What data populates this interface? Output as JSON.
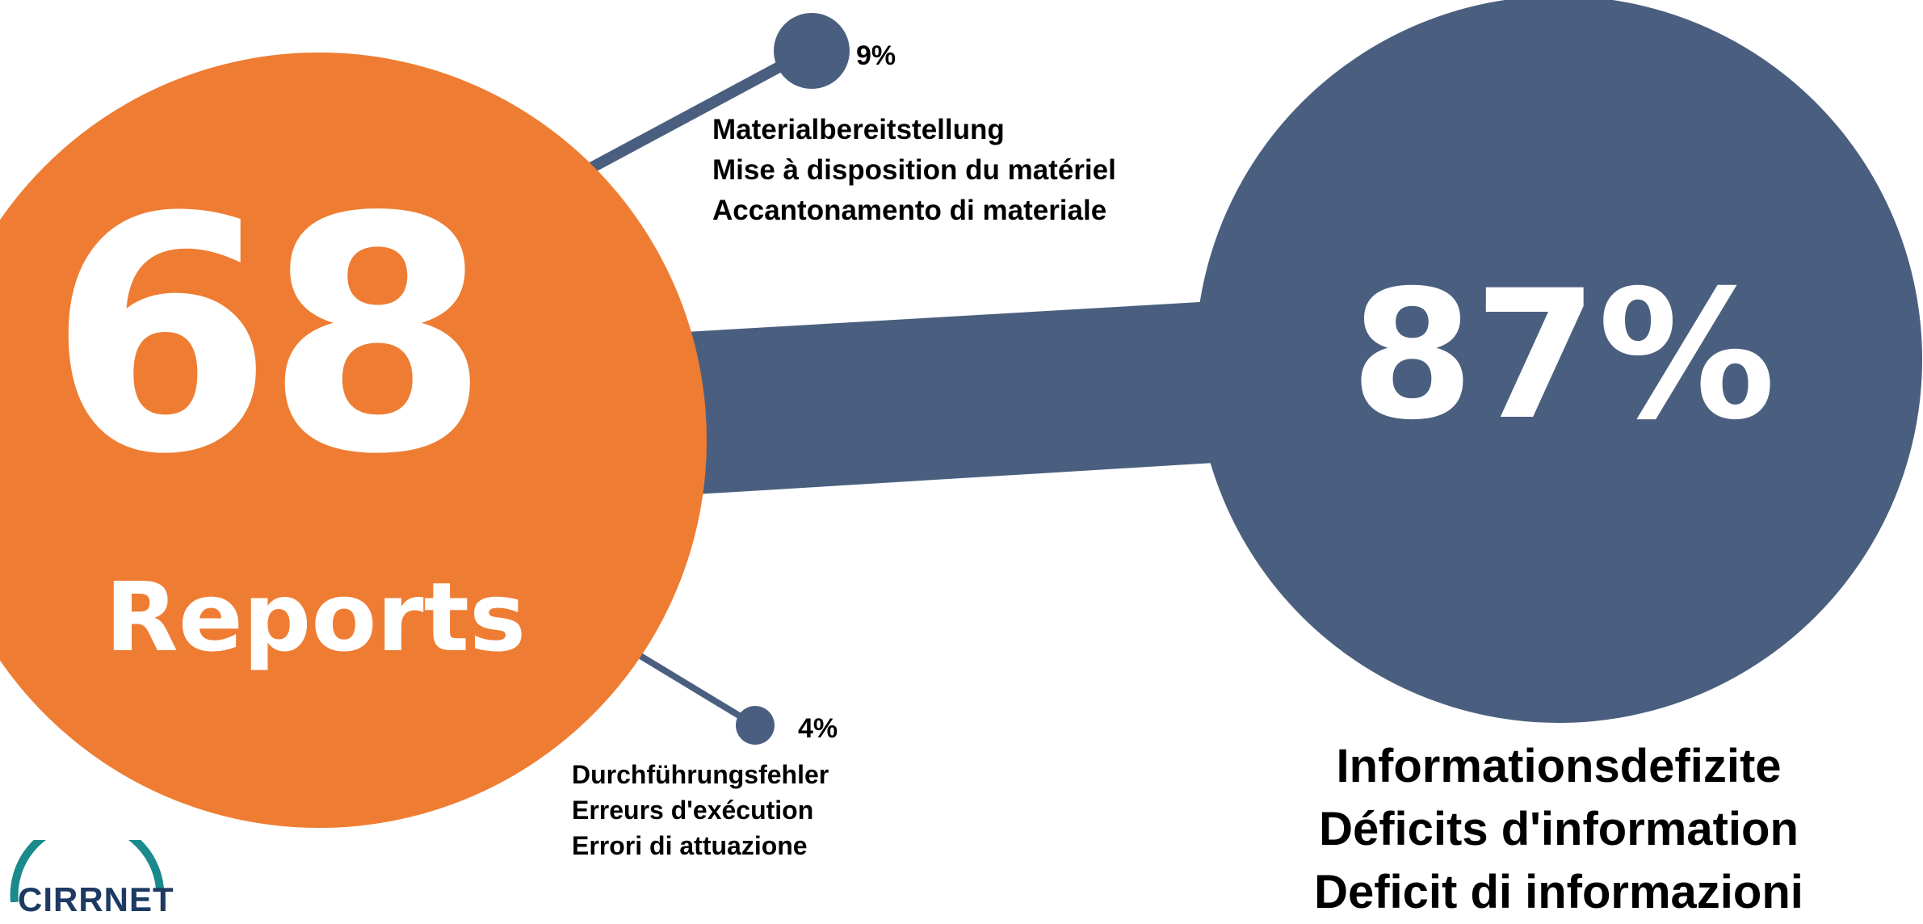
{
  "colors": {
    "orange": "#ee7d33",
    "slate": "#4a5f7f",
    "logo_teal": "#1a8a8c",
    "logo_navy": "#1d3a63"
  },
  "total": {
    "value": "68",
    "label": "Reports"
  },
  "main": {
    "percent": "87%",
    "lines": [
      "Informationsdefizite",
      "Déficits d'information",
      "Deficit di informazioni"
    ]
  },
  "minor_top": {
    "percent": "9%",
    "lines": [
      "Materialbereitstellung",
      "Mise à disposition du matériel",
      "Accantonamento di materiale"
    ]
  },
  "minor_bottom": {
    "percent": "4%",
    "lines": [
      "Durchführungsfehler",
      "Erreurs d'exécution",
      "Errori di attuazione"
    ]
  },
  "logo": {
    "text": "CIRRNET"
  }
}
